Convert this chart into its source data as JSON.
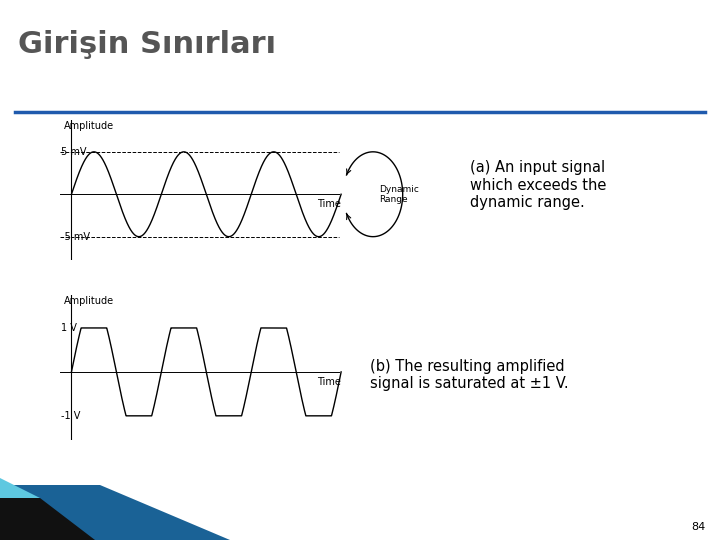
{
  "title": "Girişin Sınırları",
  "title_color": "#555555",
  "title_fontsize": 22,
  "bg_color": "#ffffff",
  "separator_color": "#1f5aad",
  "text_a": "(a) An input signal\nwhich exceeds the\ndynamic range.",
  "text_b": "(b) The resulting amplified\nsignal is saturated at ±1 V.",
  "dynamic_range_label": "Dynamic\nRange",
  "amplitude_label": "Amplitude",
  "time_label": "Time",
  "top_plus": "5 mV",
  "top_minus": "-5 mV",
  "bot_plus": "1 V",
  "bot_minus": "-1 V",
  "page_number": "84",
  "footer_color1": "#1a6296",
  "footer_color2": "#111111",
  "footer_color3": "#5ec8e0"
}
